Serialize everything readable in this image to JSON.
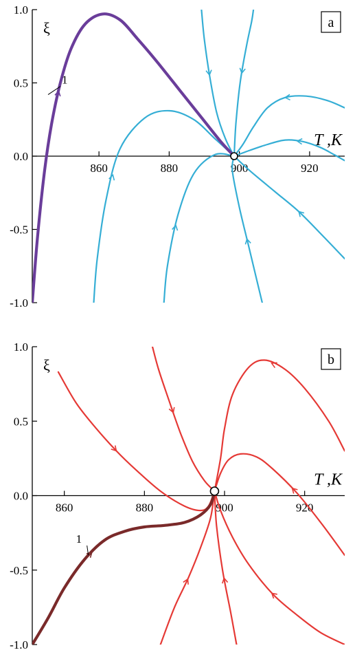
{
  "chart_data": [
    {
      "type": "line",
      "panel": "a",
      "xlabel": "T ,K",
      "ylabel": "ξ",
      "xlim": [
        841,
        930
      ],
      "ylim": [
        -1.0,
        1.0
      ],
      "xticks": [
        860,
        880,
        900,
        920
      ],
      "yticks": [
        -1.0,
        -0.5,
        0.0,
        0.5,
        1.0
      ],
      "xtick_labels": [
        "860",
        "880",
        "900",
        "920"
      ],
      "ytick_labels": [
        "-1.0",
        "-0.5",
        "0.0",
        "0.5",
        "1.0"
      ],
      "grid": false,
      "colors": {
        "separatrix": "#6a3d9a",
        "trajectory": "#35aed5",
        "axis": "#000000"
      },
      "fixed_point": {
        "T": 898.5,
        "xi": 0.0
      },
      "separatrix_label": "1",
      "separatrix": [
        [
          841,
          -1.0
        ],
        [
          842.5,
          -0.55
        ],
        [
          844.5,
          -0.1
        ],
        [
          846.5,
          0.22
        ],
        [
          849,
          0.5
        ],
        [
          852,
          0.73
        ],
        [
          856,
          0.9
        ],
        [
          861,
          0.97
        ],
        [
          866,
          0.93
        ],
        [
          871,
          0.8
        ],
        [
          876,
          0.66
        ],
        [
          883,
          0.45
        ],
        [
          890,
          0.24
        ],
        [
          895,
          0.09
        ],
        [
          898.5,
          0.0
        ]
      ],
      "series": [
        {
          "points": [
            [
              898.5,
              0.0
            ],
            [
              896,
              0.12
            ],
            [
              893.5,
              0.3
            ],
            [
              891.5,
              0.55
            ],
            [
              890,
              0.8
            ],
            [
              889.2,
              1.0
            ]
          ]
        },
        {
          "points": [
            [
              898.5,
              0.0
            ],
            [
              899,
              0.22
            ],
            [
              900.2,
              0.5
            ],
            [
              902,
              0.75
            ],
            [
              903.5,
              0.92
            ],
            [
              904,
              1.0
            ]
          ]
        },
        {
          "points": [
            [
              898.5,
              0.0
            ],
            [
              901,
              0.08
            ],
            [
              904,
              0.2
            ],
            [
              908,
              0.33
            ],
            [
              913,
              0.4
            ],
            [
              919,
              0.41
            ],
            [
              925,
              0.38
            ],
            [
              930,
              0.33
            ]
          ]
        },
        {
          "points": [
            [
              898.5,
              0.0
            ],
            [
              903,
              0.04
            ],
            [
              908,
              0.08
            ],
            [
              913,
              0.11
            ],
            [
              918,
              0.1
            ],
            [
              923,
              0.06
            ],
            [
              927,
              0.01
            ],
            [
              930,
              -0.03
            ]
          ]
        },
        {
          "points": [
            [
              898.5,
              0.0
            ],
            [
              893,
              0.12
            ],
            [
              887,
              0.25
            ],
            [
              880,
              0.31
            ],
            [
              873,
              0.26
            ],
            [
              866,
              0.05
            ],
            [
              862,
              -0.3
            ],
            [
              859.5,
              -0.7
            ],
            [
              858.5,
              -1.0
            ]
          ]
        },
        {
          "points": [
            [
              898.5,
              0.0
            ],
            [
              893,
              0.01
            ],
            [
              887,
              -0.12
            ],
            [
              882.5,
              -0.4
            ],
            [
              879.5,
              -0.75
            ],
            [
              878.5,
              -1.0
            ]
          ]
        },
        {
          "points": [
            [
              898.5,
              0.0
            ],
            [
              898,
              -0.1
            ],
            [
              900,
              -0.35
            ],
            [
              902.5,
              -0.6
            ],
            [
              905,
              -0.85
            ],
            [
              906.5,
              -1.0
            ]
          ]
        },
        {
          "points": [
            [
              898.5,
              0.0
            ],
            [
              903,
              -0.1
            ],
            [
              910,
              -0.24
            ],
            [
              917,
              -0.38
            ],
            [
              924,
              -0.55
            ],
            [
              930,
              -0.7
            ]
          ]
        }
      ]
    },
    {
      "type": "line",
      "panel": "b",
      "xlabel": "T ,K",
      "ylabel": "ξ",
      "xlim": [
        852,
        930
      ],
      "ylim": [
        -1.0,
        1.0
      ],
      "xticks": [
        860,
        880,
        900,
        920
      ],
      "yticks": [
        -1.0,
        -0.5,
        0.0,
        0.5,
        1.0
      ],
      "xtick_labels": [
        "860",
        "880",
        "900",
        "920"
      ],
      "ytick_labels": [
        "-1.0",
        "-0.5",
        "0.0",
        "0.5",
        "1.0"
      ],
      "grid": false,
      "colors": {
        "separatrix": "#7a2a2a",
        "trajectory": "#e53935",
        "axis": "#000000"
      },
      "fixed_point": {
        "T": 897.5,
        "xi": 0.03
      },
      "separatrix_label": "1",
      "separatrix": [
        [
          852,
          -1.0
        ],
        [
          856,
          -0.82
        ],
        [
          860,
          -0.62
        ],
        [
          865,
          -0.43
        ],
        [
          870,
          -0.3
        ],
        [
          875,
          -0.24
        ],
        [
          880,
          -0.21
        ],
        [
          885,
          -0.2
        ],
        [
          890,
          -0.18
        ],
        [
          894,
          -0.13
        ],
        [
          896.5,
          -0.06
        ],
        [
          897.5,
          0.03
        ]
      ],
      "series": [
        {
          "points": [
            [
              858.5,
              0.83
            ],
            [
              863,
              0.62
            ],
            [
              868,
              0.45
            ],
            [
              873,
              0.3
            ],
            [
              878,
              0.17
            ],
            [
              884,
              0.03
            ],
            [
              890,
              -0.07
            ],
            [
              894,
              -0.1
            ],
            [
              896,
              -0.07
            ],
            [
              897.5,
              0.03
            ]
          ]
        },
        {
          "points": [
            [
              882,
              1.0
            ],
            [
              883.5,
              0.85
            ],
            [
              886,
              0.65
            ],
            [
              889,
              0.42
            ],
            [
              892,
              0.23
            ],
            [
              895,
              0.1
            ],
            [
              897.5,
              0.03
            ]
          ]
        },
        {
          "points": [
            [
              897.5,
              0.03
            ],
            [
              899,
              0.25
            ],
            [
              900,
              0.45
            ],
            [
              902,
              0.68
            ],
            [
              906,
              0.86
            ],
            [
              910,
              0.91
            ],
            [
              915,
              0.85
            ],
            [
              920,
              0.72
            ],
            [
              926,
              0.5
            ],
            [
              930,
              0.3
            ]
          ]
        },
        {
          "points": [
            [
              897.5,
              0.03
            ],
            [
              899,
              0.15
            ],
            [
              901,
              0.24
            ],
            [
              904,
              0.28
            ],
            [
              908,
              0.26
            ],
            [
              912,
              0.18
            ],
            [
              918,
              0.02
            ],
            [
              924,
              -0.18
            ],
            [
              930,
              -0.4
            ]
          ]
        },
        {
          "points": [
            [
              897.5,
              0.03
            ],
            [
              899,
              -0.1
            ],
            [
              902,
              -0.28
            ],
            [
              906,
              -0.46
            ],
            [
              912,
              -0.66
            ],
            [
              918,
              -0.8
            ],
            [
              924,
              -0.92
            ],
            [
              930,
              -1.0
            ]
          ]
        },
        {
          "points": [
            [
              897.5,
              0.03
            ],
            [
              898,
              -0.2
            ],
            [
              899.5,
              -0.5
            ],
            [
              901.5,
              -0.78
            ],
            [
              903,
              -1.0
            ]
          ]
        },
        {
          "points": [
            [
              897.5,
              0.03
            ],
            [
              896.5,
              -0.15
            ],
            [
              894,
              -0.35
            ],
            [
              891,
              -0.55
            ],
            [
              887.5,
              -0.75
            ],
            [
              884,
              -1.0
            ]
          ]
        }
      ]
    }
  ]
}
